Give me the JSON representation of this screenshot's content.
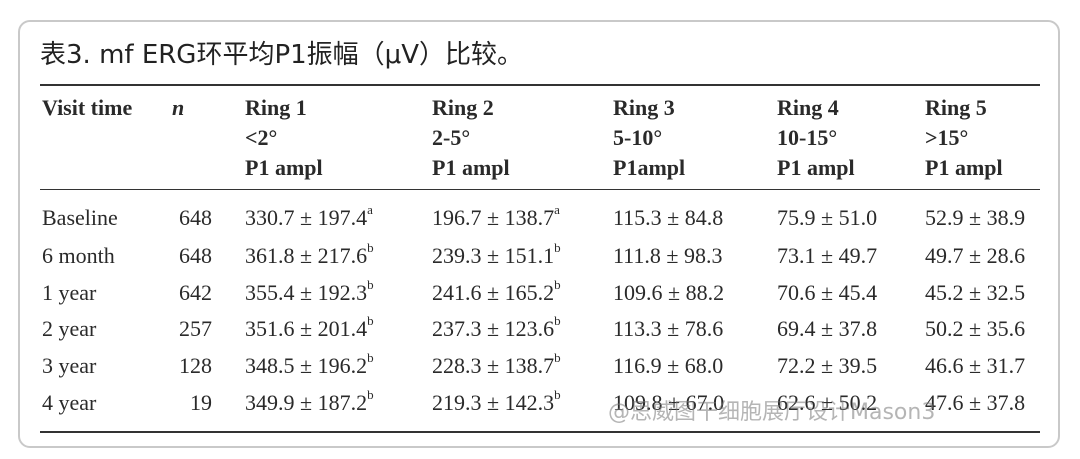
{
  "title": "表3. mf ERG环平均P1振幅（μV）比较。",
  "table": {
    "columns": [
      [
        "Visit time"
      ],
      [
        "n"
      ],
      [
        "Ring 1",
        "<2°",
        "P1 ampl"
      ],
      [
        "Ring 2",
        "2-5°",
        "P1 ampl"
      ],
      [
        "Ring 3",
        "5-10°",
        "P1ampl"
      ],
      [
        "Ring 4",
        "10-15°",
        "P1 ampl"
      ],
      [
        "Ring 5",
        ">15°",
        "P1 ampl"
      ]
    ],
    "rows": [
      [
        "Baseline",
        "648",
        {
          "text": "330.7 ± 197.4",
          "sup": "a"
        },
        {
          "text": "196.7 ± 138.7",
          "sup": "a"
        },
        "115.3 ± 84.8",
        "75.9 ± 51.0",
        "52.9 ± 38.9"
      ],
      [
        "6 month",
        "648",
        {
          "text": "361.8 ± 217.6",
          "sup": "b"
        },
        {
          "text": "239.3 ± 151.1",
          "sup": "b"
        },
        "111.8 ± 98.3",
        "73.1 ± 49.7",
        "49.7 ± 28.6"
      ],
      [
        "1 year",
        "642",
        {
          "text": "355.4 ± 192.3",
          "sup": "b"
        },
        {
          "text": "241.6 ± 165.2",
          "sup": "b"
        },
        "109.6 ± 88.2",
        "70.6 ± 45.4",
        "45.2 ± 32.5"
      ],
      [
        "2 year",
        "257",
        {
          "text": "351.6 ± 201.4",
          "sup": "b"
        },
        {
          "text": "237.3 ± 123.6",
          "sup": "b"
        },
        "113.3 ± 78.6",
        "69.4 ± 37.8",
        "50.2 ± 35.6"
      ],
      [
        "3 year",
        "128",
        {
          "text": "348.5 ± 196.2",
          "sup": "b"
        },
        {
          "text": "228.3 ± 138.7",
          "sup": "b"
        },
        "116.9 ± 68.0",
        "72.2 ± 39.5",
        "46.6 ± 31.7"
      ],
      [
        "4 year",
        "19",
        {
          "text": "349.9 ± 187.2",
          "sup": "b"
        },
        {
          "text": "219.3 ± 142.3",
          "sup": "b"
        },
        "109.8 ± 67.0",
        "62.6 ± 50.2",
        "47.6 ± 37.8"
      ]
    ]
  },
  "watermark": "@思威图干细胞展厅设计Mason3"
}
